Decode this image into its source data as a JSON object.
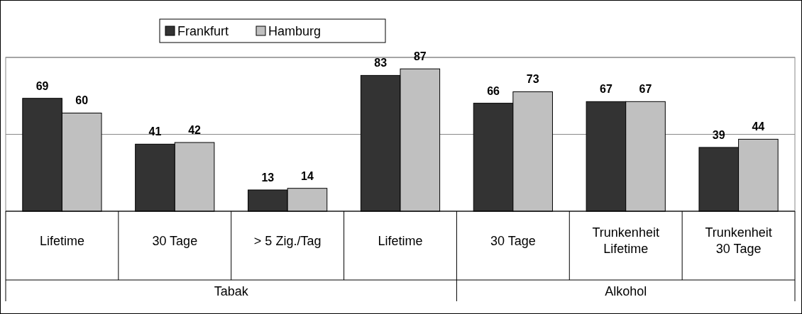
{
  "chart_data": {
    "type": "bar",
    "categories": [
      "Lifetime",
      "30 Tage",
      "> 5 Zig./Tag",
      "Lifetime",
      "30 Tage",
      "Trunkenheit Lifetime",
      "Trunkenheit 30 Tage"
    ],
    "series": [
      {
        "name": "Frankfurt",
        "color": "#333333",
        "values": [
          69,
          41,
          13,
          83,
          66,
          67,
          39
        ]
      },
      {
        "name": "Hamburg",
        "color": "#c0c0c0",
        "values": [
          60,
          42,
          14,
          87,
          73,
          67,
          44
        ]
      }
    ],
    "ylim": [
      0,
      94
    ],
    "yticks": [
      {
        "value": 0,
        "label": null
      },
      {
        "value": 47,
        "label": null
      },
      {
        "value": 94,
        "label": null
      }
    ],
    "grid": "y",
    "legend": "top",
    "data_labels": true,
    "tick_labels": "x",
    "annotations": [
      "Tabak",
      "Alkohol"
    ]
  }
}
